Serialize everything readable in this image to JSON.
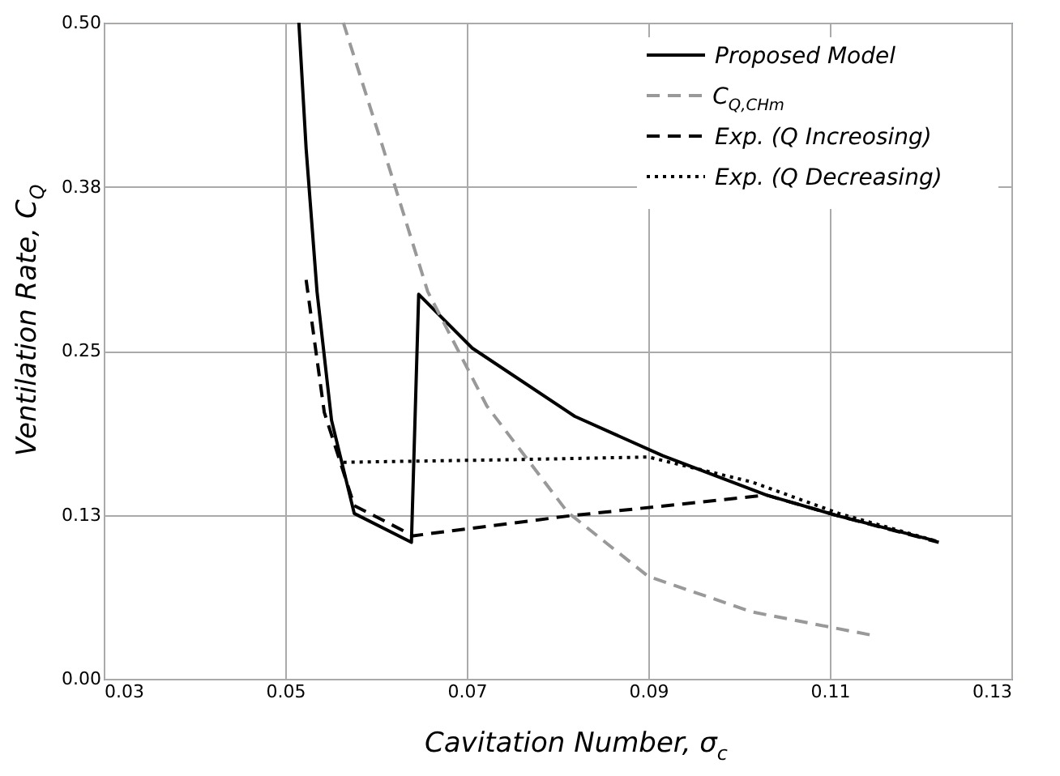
{
  "chart_data": {
    "type": "line",
    "xlabel": "Cavitation Number, σ$_{c}$",
    "ylabel": "Ventilation Rate, C$_{Q}$",
    "xlim": [
      0.03,
      0.13
    ],
    "xticks": [
      {
        "value": 0.03,
        "label": "0.03"
      },
      {
        "value": 0.05,
        "label": "0.05"
      },
      {
        "value": 0.07,
        "label": "0.07"
      },
      {
        "value": 0.09,
        "label": "0.09"
      },
      {
        "value": 0.11,
        "label": "0.11"
      },
      {
        "value": 0.13,
        "label": "0.13"
      }
    ],
    "ylim": [
      0,
      0.5
    ],
    "yticks": [
      {
        "value": 0,
        "label": "0.00"
      },
      {
        "value": 0.125,
        "label": "0.13"
      },
      {
        "value": 0.25,
        "label": "0.25"
      },
      {
        "value": 0.375,
        "label": "0.38"
      },
      {
        "value": 0.5,
        "label": "0.50"
      }
    ],
    "grid": true,
    "legend": "top right",
    "marker": "none",
    "series": [
      {
        "name": "Proposed Model",
        "color": "#000000",
        "line_style": "solid",
        "x": [
          0.0515,
          0.0523,
          0.0535,
          0.0551,
          0.0576,
          0.0639,
          0.0647,
          0.0706,
          0.0819,
          0.0916,
          0.103,
          0.111,
          0.1217
        ],
        "values": [
          0.5,
          0.404,
          0.295,
          0.197,
          0.126,
          0.104,
          0.293,
          0.252,
          0.2,
          0.17,
          0.14,
          0.124,
          0.105
        ]
      },
      {
        "name": "C$_{Q,CHm}$",
        "color": "#999999",
        "line_style": "dashed",
        "x": [
          0.0564,
          0.0608,
          0.0657,
          0.0722,
          0.0811,
          0.09,
          0.1014,
          0.1148
        ],
        "values": [
          0.5,
          0.404,
          0.295,
          0.208,
          0.127,
          0.078,
          0.051,
          0.033
        ]
      },
      {
        "name": "Exp. (Q Increosing)",
        "color": "#000000",
        "line_style": "dashed",
        "x": [
          0.0523,
          0.0543,
          0.0576,
          0.0641,
          0.0811,
          0.103,
          0.111,
          0.122
        ],
        "values": [
          0.304,
          0.203,
          0.132,
          0.109,
          0.124,
          0.14,
          0.124,
          0.104
        ]
      },
      {
        "name": "Exp. (Q Decreasing)",
        "color": "#000000",
        "line_style": "dotted",
        "x": [
          0.0564,
          0.075,
          0.09,
          0.1014,
          0.111,
          0.1217
        ],
        "values": [
          0.165,
          0.167,
          0.169,
          0.15,
          0.126,
          0.105
        ]
      }
    ]
  }
}
